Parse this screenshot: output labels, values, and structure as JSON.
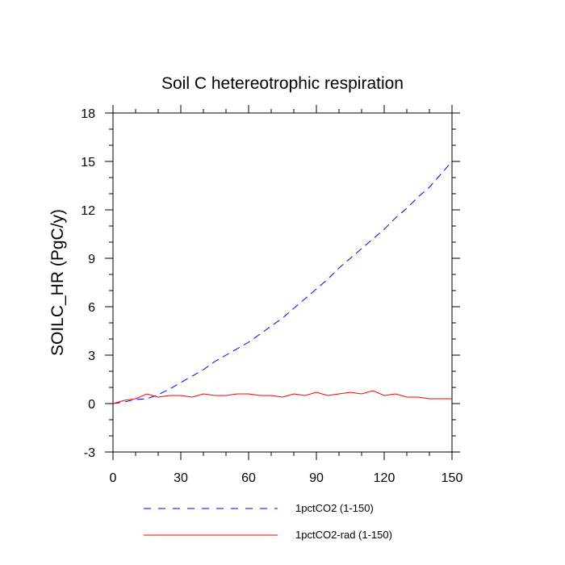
{
  "chart_data": {
    "type": "line",
    "title": "Soil C hetereotrophic respiration",
    "xlabel": "",
    "ylabel": "SOILC_HR  (PgC/y)",
    "xlim": [
      0,
      150
    ],
    "ylim": [
      -3,
      18
    ],
    "xticks": [
      0,
      30,
      60,
      90,
      120,
      150
    ],
    "yticks": [
      -3,
      0,
      3,
      6,
      9,
      12,
      15,
      18
    ],
    "grid": false,
    "legend_position": "bottom",
    "x": [
      0,
      5,
      10,
      15,
      20,
      25,
      30,
      35,
      40,
      45,
      50,
      55,
      60,
      65,
      70,
      75,
      80,
      85,
      90,
      95,
      100,
      105,
      110,
      115,
      120,
      125,
      130,
      135,
      140,
      145,
      150
    ],
    "series": [
      {
        "name": "1pctCO2 (1-150)",
        "color": "#0000ff",
        "dash": "dashed",
        "values": [
          0.0,
          0.1,
          0.25,
          0.3,
          0.55,
          0.9,
          1.3,
          1.7,
          2.1,
          2.6,
          3.0,
          3.4,
          3.8,
          4.3,
          4.8,
          5.3,
          5.9,
          6.5,
          7.1,
          7.7,
          8.4,
          9.0,
          9.6,
          10.2,
          10.8,
          11.5,
          12.1,
          12.8,
          13.4,
          14.2,
          15.0
        ]
      },
      {
        "name": "1pctCO2-rad (1-150)",
        "color": "#ff0000",
        "dash": "solid",
        "values": [
          0.0,
          0.2,
          0.3,
          0.6,
          0.4,
          0.5,
          0.5,
          0.4,
          0.6,
          0.5,
          0.5,
          0.6,
          0.6,
          0.5,
          0.5,
          0.4,
          0.6,
          0.5,
          0.7,
          0.5,
          0.6,
          0.7,
          0.6,
          0.8,
          0.5,
          0.6,
          0.4,
          0.4,
          0.3,
          0.3,
          0.3
        ]
      }
    ]
  }
}
